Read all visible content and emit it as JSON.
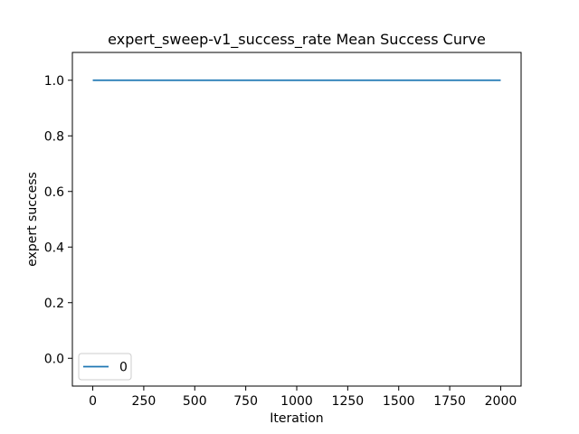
{
  "chart_data": {
    "type": "line",
    "title": "expert_sweep-v1_success_rate Mean Success Curve",
    "xlabel": "Iteration",
    "ylabel": "expert success",
    "xlim": [
      -100,
      2100
    ],
    "ylim": [
      -0.1,
      1.1
    ],
    "x_ticks": [
      0,
      250,
      500,
      750,
      1000,
      1250,
      1500,
      1750,
      2000
    ],
    "y_ticks": [
      0.0,
      0.2,
      0.4,
      0.6,
      0.8,
      1.0
    ],
    "x_tick_labels": [
      "0",
      "250",
      "500",
      "750",
      "1000",
      "1250",
      "1500",
      "1750",
      "2000"
    ],
    "y_tick_labels": [
      "0.0",
      "0.2",
      "0.4",
      "0.6",
      "0.8",
      "1.0"
    ],
    "grid": false,
    "legend_position": "lower-left",
    "series": [
      {
        "name": "0",
        "color": "#1f77b4",
        "x": [
          0,
          2000
        ],
        "y": [
          1.0,
          1.0
        ]
      }
    ]
  }
}
